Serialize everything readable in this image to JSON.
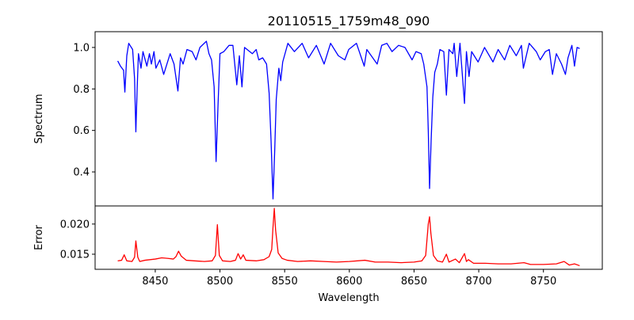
{
  "chart_data": [
    {
      "type": "line",
      "title": "20110515_1759m48_090",
      "xlabel": "",
      "ylabel": "Spectrum",
      "xlim": [
        8403.5,
        8795.5
      ],
      "ylim": [
        0.236,
        1.076
      ],
      "xticks": [],
      "yticks": [
        0.4,
        0.6,
        0.8,
        1.0
      ],
      "ytick_labels": [
        "0.4",
        "0.6",
        "0.8",
        "1.0"
      ],
      "grid": false,
      "series": [
        {
          "name": "Spectrum",
          "color": "#0000ff",
          "points": [
            [
              8421,
              0.935
            ],
            [
              8423,
              0.911
            ],
            [
              8425.5,
              0.89
            ],
            [
              8426.5,
              0.785
            ],
            [
              8428,
              0.96
            ],
            [
              8429.5,
              1.02
            ],
            [
              8432.5,
              0.99
            ],
            [
              8434,
              0.85
            ],
            [
              8435,
              0.593
            ],
            [
              8436,
              0.8
            ],
            [
              8437,
              0.97
            ],
            [
              8439,
              0.9
            ],
            [
              8440.5,
              0.98
            ],
            [
              8443.5,
              0.91
            ],
            [
              8445.5,
              0.97
            ],
            [
              8447,
              0.92
            ],
            [
              8449,
              0.98
            ],
            [
              8450.5,
              0.9
            ],
            [
              8453.5,
              0.94
            ],
            [
              8456.5,
              0.87
            ],
            [
              8461.5,
              0.97
            ],
            [
              8464.5,
              0.92
            ],
            [
              8467.5,
              0.79
            ],
            [
              8469.5,
              0.95
            ],
            [
              8471.5,
              0.92
            ],
            [
              8474.5,
              0.99
            ],
            [
              8478.5,
              0.98
            ],
            [
              8481.5,
              0.94
            ],
            [
              8484.5,
              1.0
            ],
            [
              8489.5,
              1.03
            ],
            [
              8491.5,
              0.97
            ],
            [
              8493.5,
              0.94
            ],
            [
              8495.5,
              0.81
            ],
            [
              8497,
              0.45
            ],
            [
              8498.5,
              0.72
            ],
            [
              8500,
              0.97
            ],
            [
              8503,
              0.98
            ],
            [
              8507,
              1.01
            ],
            [
              8510,
              1.01
            ],
            [
              8513,
              0.82
            ],
            [
              8515,
              0.96
            ],
            [
              8517,
              0.81
            ],
            [
              8519,
              1.0
            ],
            [
              8525,
              0.97
            ],
            [
              8528,
              0.99
            ],
            [
              8530,
              0.94
            ],
            [
              8533,
              0.95
            ],
            [
              8536,
              0.92
            ],
            [
              8538,
              0.78
            ],
            [
              8539.5,
              0.55
            ],
            [
              8541,
              0.27
            ],
            [
              8542.3,
              0.5
            ],
            [
              8543.5,
              0.75
            ],
            [
              8545.5,
              0.9
            ],
            [
              8547,
              0.84
            ],
            [
              8548.5,
              0.93
            ],
            [
              8552.5,
              1.02
            ],
            [
              8557.5,
              0.98
            ],
            [
              8563.5,
              1.02
            ],
            [
              8568.5,
              0.95
            ],
            [
              8574.5,
              1.01
            ],
            [
              8580.5,
              0.92
            ],
            [
              8585.5,
              1.02
            ],
            [
              8591.5,
              0.96
            ],
            [
              8596.5,
              0.94
            ],
            [
              8599.5,
              0.99
            ],
            [
              8605.5,
              1.02
            ],
            [
              8611.5,
              0.91
            ],
            [
              8613.5,
              0.99
            ],
            [
              8621.5,
              0.92
            ],
            [
              8625,
              1.01
            ],
            [
              8629,
              1.02
            ],
            [
              8633,
              0.98
            ],
            [
              8638,
              1.01
            ],
            [
              8643,
              1.0
            ],
            [
              8648.5,
              0.94
            ],
            [
              8651.5,
              0.98
            ],
            [
              8655.5,
              0.97
            ],
            [
              8657.5,
              0.92
            ],
            [
              8660,
              0.81
            ],
            [
              8661,
              0.6
            ],
            [
              8662,
              0.32
            ],
            [
              8663.2,
              0.55
            ],
            [
              8664.5,
              0.76
            ],
            [
              8666,
              0.88
            ],
            [
              8668,
              0.92
            ],
            [
              8670,
              0.99
            ],
            [
              8673,
              0.98
            ],
            [
              8675,
              0.77
            ],
            [
              8677,
              0.99
            ],
            [
              8680,
              0.97
            ],
            [
              8681,
              1.02
            ],
            [
              8683,
              0.86
            ],
            [
              8685.5,
              1.02
            ],
            [
              8689,
              0.73
            ],
            [
              8690.5,
              0.98
            ],
            [
              8692.5,
              0.86
            ],
            [
              8694.5,
              0.98
            ],
            [
              8699.5,
              0.93
            ],
            [
              8704.5,
              1.0
            ],
            [
              8711,
              0.93
            ],
            [
              8715,
              0.99
            ],
            [
              8720,
              0.94
            ],
            [
              8724,
              1.01
            ],
            [
              8729,
              0.96
            ],
            [
              8733,
              1.01
            ],
            [
              8734.5,
              0.9
            ],
            [
              8739,
              1.02
            ],
            [
              8744.5,
              0.98
            ],
            [
              8747.5,
              0.94
            ],
            [
              8751.5,
              0.98
            ],
            [
              8754.5,
              0.99
            ],
            [
              8757,
              0.87
            ],
            [
              8760,
              0.97
            ],
            [
              8764,
              0.92
            ],
            [
              8767,
              0.87
            ],
            [
              8769,
              0.95
            ],
            [
              8772,
              1.01
            ],
            [
              8774,
              0.91
            ],
            [
              8776,
              1.0
            ],
            [
              8778,
              0.995
            ]
          ]
        }
      ]
    },
    {
      "type": "line",
      "title": "",
      "xlabel": "Wavelength",
      "ylabel": "Error",
      "xlim": [
        8403.5,
        8795.5
      ],
      "ylim": [
        0.0125,
        0.023
      ],
      "xticks": [
        8450,
        8500,
        8550,
        8600,
        8650,
        8700,
        8750
      ],
      "xtick_labels": [
        "8450",
        "8500",
        "8550",
        "8600",
        "8650",
        "8700",
        "8750"
      ],
      "yticks": [
        0.015,
        0.02
      ],
      "ytick_labels": [
        "0.015",
        "0.020"
      ],
      "grid": false,
      "series": [
        {
          "name": "Error",
          "color": "#ff0000",
          "points": [
            [
              8421,
              0.0139
            ],
            [
              8424,
              0.014
            ],
            [
              8426,
              0.0149
            ],
            [
              8428,
              0.0139
            ],
            [
              8432,
              0.0138
            ],
            [
              8434,
              0.0145
            ],
            [
              8435,
              0.0172
            ],
            [
              8436.5,
              0.0145
            ],
            [
              8438,
              0.0138
            ],
            [
              8442,
              0.014
            ],
            [
              8446,
              0.0141
            ],
            [
              8450,
              0.0142
            ],
            [
              8455,
              0.0144
            ],
            [
              8460,
              0.0143
            ],
            [
              8464,
              0.0142
            ],
            [
              8466,
              0.0146
            ],
            [
              8468,
              0.0155
            ],
            [
              8470,
              0.0147
            ],
            [
              8474,
              0.014
            ],
            [
              8480,
              0.0139
            ],
            [
              8488,
              0.0138
            ],
            [
              8494,
              0.0139
            ],
            [
              8496.5,
              0.0148
            ],
            [
              8498,
              0.0199
            ],
            [
              8499.5,
              0.0148
            ],
            [
              8502,
              0.0139
            ],
            [
              8508,
              0.0138
            ],
            [
              8512,
              0.014
            ],
            [
              8514,
              0.0151
            ],
            [
              8516,
              0.0142
            ],
            [
              8518,
              0.0149
            ],
            [
              8520,
              0.014
            ],
            [
              8528,
              0.0139
            ],
            [
              8534,
              0.0141
            ],
            [
              8538,
              0.0146
            ],
            [
              8540,
              0.0158
            ],
            [
              8541,
              0.0195
            ],
            [
              8542,
              0.0226
            ],
            [
              8543,
              0.019
            ],
            [
              8545,
              0.0152
            ],
            [
              8548,
              0.0143
            ],
            [
              8552,
              0.014
            ],
            [
              8560,
              0.0138
            ],
            [
              8570,
              0.0139
            ],
            [
              8580,
              0.0138
            ],
            [
              8590,
              0.0137
            ],
            [
              8600,
              0.0138
            ],
            [
              8612,
              0.014
            ],
            [
              8620,
              0.0137
            ],
            [
              8630,
              0.0137
            ],
            [
              8640,
              0.0136
            ],
            [
              8650,
              0.0137
            ],
            [
              8656,
              0.0139
            ],
            [
              8659,
              0.0148
            ],
            [
              8661,
              0.02
            ],
            [
              8662,
              0.0212
            ],
            [
              8663,
              0.0185
            ],
            [
              8665,
              0.0148
            ],
            [
              8668,
              0.0139
            ],
            [
              8672,
              0.0137
            ],
            [
              8675,
              0.015
            ],
            [
              8677,
              0.0137
            ],
            [
              8682,
              0.0142
            ],
            [
              8685,
              0.0136
            ],
            [
              8689,
              0.0151
            ],
            [
              8690.5,
              0.0138
            ],
            [
              8692,
              0.0141
            ],
            [
              8696,
              0.0135
            ],
            [
              8705,
              0.0135
            ],
            [
              8715,
              0.0134
            ],
            [
              8725,
              0.0134
            ],
            [
              8735,
              0.0136
            ],
            [
              8740,
              0.0133
            ],
            [
              8750,
              0.0133
            ],
            [
              8760,
              0.0134
            ],
            [
              8766,
              0.0138
            ],
            [
              8770,
              0.0132
            ],
            [
              8774,
              0.0134
            ],
            [
              8778,
              0.0131
            ]
          ]
        }
      ]
    }
  ]
}
